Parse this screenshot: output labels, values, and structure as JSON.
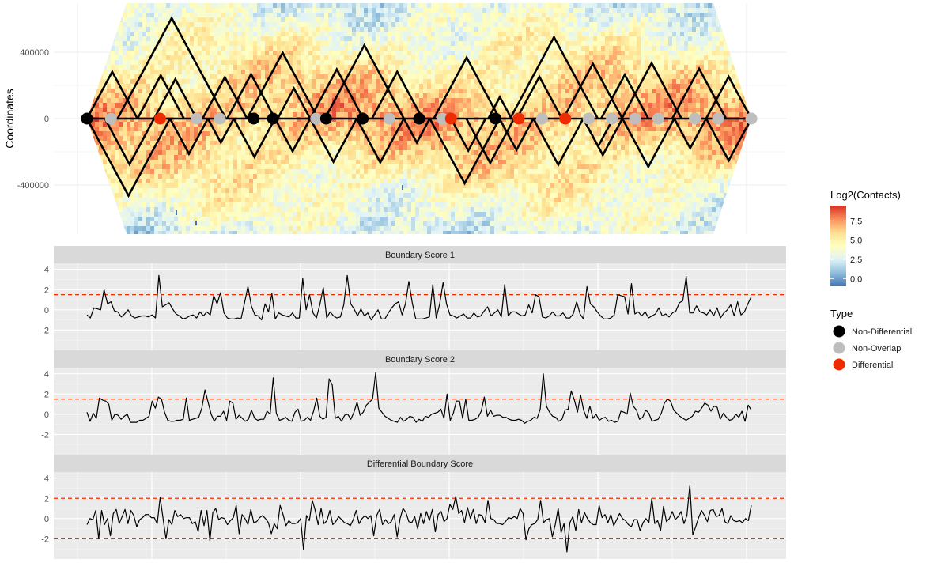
{
  "chart_data": [
    {
      "type": "heatmap",
      "ylabel": "Coordinates",
      "y_ticks": [
        400000,
        0,
        -400000
      ],
      "y_tick_labels": [
        "400000",
        "0",
        "-400000"
      ],
      "ylim": [
        -680000,
        690000
      ],
      "colorbar": {
        "title": "Log2(Contacts)",
        "range": [
          -1,
          9.5
        ],
        "ticks": [
          7.5,
          5.0,
          2.5,
          0.0
        ],
        "tick_labels": [
          "7.5",
          "5.0",
          "2.5",
          "0.0"
        ],
        "colors": [
          "#4575b4",
          "#91bfdb",
          "#e0f3f8",
          "#ffffbf",
          "#fee090",
          "#fc8d59",
          "#d73027"
        ]
      },
      "tad_domains_upper": [
        [
          0,
          0.076
        ],
        [
          0.046,
          0.209
        ],
        [
          0.101,
          0.165
        ],
        [
          0.241,
          0.348
        ],
        [
          0.211,
          0.283
        ],
        [
          0.287,
          0.336
        ],
        [
          0.358,
          0.477
        ],
        [
          0.336,
          0.416
        ],
        [
          0.429,
          0.505
        ],
        [
          0.522,
          0.621
        ],
        [
          0.604,
          0.639
        ],
        [
          0.637,
          0.769
        ],
        [
          0.647,
          0.715
        ],
        [
          0.717,
          0.806
        ],
        [
          0.805,
          0.895
        ],
        [
          0.774,
          0.845
        ],
        [
          0.881,
          0.962
        ],
        [
          0.932,
          1.0
        ],
        [
          0.076,
          0.146
        ],
        [
          0.174,
          0.241
        ]
      ],
      "tad_domains_lower": [
        [
          0,
          0.125
        ],
        [
          0.027,
          0.101
        ],
        [
          0.125,
          0.182
        ],
        [
          0.182,
          0.221
        ],
        [
          0.221,
          0.283
        ],
        [
          0.283,
          0.336
        ],
        [
          0.336,
          0.406
        ],
        [
          0.406,
          0.477
        ],
        [
          0.477,
          0.516
        ],
        [
          0.516,
          0.621
        ],
        [
          0.621,
          0.672
        ],
        [
          0.672,
          0.747
        ],
        [
          0.747,
          0.806
        ],
        [
          0.806,
          0.884
        ],
        [
          0.884,
          0.932
        ],
        [
          0.932,
          1.0
        ],
        [
          0.571,
          0.643
        ],
        [
          0.747,
          0.792
        ],
        [
          0.548,
          0.6
        ]
      ],
      "legend": {
        "title": "Type",
        "entries": [
          {
            "label": "Non-Differential",
            "color": "#000000"
          },
          {
            "label": "Non-Overlap",
            "color": "#bebebe"
          },
          {
            "label": "Differential",
            "color": "#ee2c00"
          }
        ]
      },
      "boundaries": [
        {
          "x": 0.0,
          "type": "Non-Differential"
        },
        {
          "x": 0.036,
          "type": "Non-Overlap"
        },
        {
          "x": 0.11,
          "type": "Differential"
        },
        {
          "x": 0.165,
          "type": "Non-Overlap"
        },
        {
          "x": 0.2,
          "type": "Non-Overlap"
        },
        {
          "x": 0.251,
          "type": "Non-Differential"
        },
        {
          "x": 0.28,
          "type": "Non-Differential"
        },
        {
          "x": 0.345,
          "type": "Non-Overlap"
        },
        {
          "x": 0.36,
          "type": "Non-Differential"
        },
        {
          "x": 0.415,
          "type": "Non-Differential"
        },
        {
          "x": 0.455,
          "type": "Non-Overlap"
        },
        {
          "x": 0.5,
          "type": "Non-Differential"
        },
        {
          "x": 0.535,
          "type": "Non-Overlap"
        },
        {
          "x": 0.548,
          "type": "Differential"
        },
        {
          "x": 0.615,
          "type": "Non-Differential"
        },
        {
          "x": 0.65,
          "type": "Differential"
        },
        {
          "x": 0.685,
          "type": "Non-Overlap"
        },
        {
          "x": 0.72,
          "type": "Differential"
        },
        {
          "x": 0.755,
          "type": "Non-Overlap"
        },
        {
          "x": 0.79,
          "type": "Non-Overlap"
        },
        {
          "x": 0.825,
          "type": "Non-Overlap"
        },
        {
          "x": 0.86,
          "type": "Non-Overlap"
        },
        {
          "x": 0.915,
          "type": "Non-Overlap"
        },
        {
          "x": 0.95,
          "type": "Non-Overlap"
        },
        {
          "x": 1.0,
          "type": "Non-Overlap"
        }
      ]
    },
    {
      "type": "line",
      "title": "Boundary Score 1",
      "ylim": [
        -4,
        4.6
      ],
      "y_ticks": [
        4,
        2,
        0,
        -2
      ],
      "y_tick_labels": [
        "4",
        "2",
        "0",
        "-2"
      ],
      "threshold": [
        1.5
      ],
      "x_range": [
        0,
        1
      ],
      "values": [
        -0.5,
        -0.8,
        0.2,
        0.1,
        0.0,
        2.0,
        0.6,
        0.8,
        -0.1,
        -0.2,
        -0.7,
        -0.4,
        0.0,
        -0.6,
        -0.8,
        -0.7,
        -0.6,
        -0.6,
        -0.7,
        -0.5,
        -0.8,
        3.4,
        0.3,
        0.5,
        0.7,
        0.1,
        -0.4,
        -0.6,
        -0.9,
        -0.8,
        -0.6,
        -0.5,
        -0.8,
        -0.2,
        -0.6,
        -0.2,
        -0.5,
        1.4,
        0.6,
        1.7,
        -0.3,
        -0.8,
        -0.9,
        -0.9,
        -0.8,
        -0.9,
        0.7,
        2.3,
        0.4,
        -0.5,
        -0.6,
        -1.0,
        0.6,
        -0.2,
        1.6,
        -0.9,
        -0.3,
        -0.5,
        -0.6,
        -0.7,
        -0.3,
        -0.8,
        -0.8,
        3.1,
        0.0,
        1.5,
        -0.3,
        -0.8,
        0.5,
        2.2,
        -0.8,
        -0.2,
        -0.6,
        -0.8,
        -0.7,
        0.5,
        3.4,
        0.6,
        0.1,
        -0.6,
        0.1,
        -0.6,
        -0.3,
        -1.0,
        -0.5,
        0.0,
        -0.9,
        -0.9,
        -0.3,
        0.2,
        0.6,
        0.8,
        -0.5,
        0.6,
        2.8,
        0.7,
        -0.9,
        -0.9,
        -0.9,
        -0.8,
        -0.7,
        2.5,
        -0.8,
        0.6,
        2.7,
        0.6,
        -0.5,
        -0.6,
        -0.8,
        -0.6,
        -0.4,
        -0.8,
        -0.8,
        -0.3,
        -0.7,
        -0.6,
        -0.1,
        0.3,
        -0.6,
        -0.3,
        0.0,
        -0.7,
        2.5,
        -0.6,
        -0.2,
        -0.2,
        -0.4,
        -0.6,
        -0.5,
        0.5,
        -0.3,
        1.5,
        1.3,
        -0.7,
        -0.8,
        -0.6,
        -0.2,
        -0.6,
        -0.6,
        -0.3,
        -0.8,
        -0.8,
        -0.4,
        0.8,
        -0.4,
        -0.9,
        2.3,
        0.6,
        0.3,
        -0.2,
        -0.6,
        -0.9,
        -0.9,
        -0.8,
        -0.5,
        1.5,
        1.4,
        1.3,
        -0.4,
        2.6,
        -0.4,
        -0.2,
        -0.6,
        -0.2,
        -0.8,
        -0.6,
        -0.4,
        0.2,
        -0.6,
        -0.4,
        -0.7,
        -0.3,
        -0.1,
        0.7,
        0.9,
        3.3,
        -0.3,
        -0.3,
        0.4,
        -0.2,
        -0.3,
        -0.5,
        0.0,
        -0.6,
        0.2,
        -0.8,
        -0.3,
        0.0,
        0.5,
        -0.6,
        0.8,
        -0.5,
        -0.2,
        0.6,
        1.3
      ]
    },
    {
      "type": "line",
      "title": "Boundary Score 2",
      "ylim": [
        -4,
        4.6
      ],
      "y_ticks": [
        4,
        2,
        0,
        -2
      ],
      "y_tick_labels": [
        "4",
        "2",
        "0",
        "-2"
      ],
      "threshold": [
        1.5
      ],
      "x_range": [
        0,
        1
      ],
      "values": [
        0.2,
        -0.7,
        0.1,
        -0.4,
        1.6,
        1.4,
        1.3,
        1.0,
        -0.6,
        0.0,
        -0.1,
        -0.5,
        -0.2,
        0.0,
        -0.8,
        -0.8,
        -0.8,
        -0.6,
        -0.6,
        -0.4,
        -0.2,
        1.3,
        0.6,
        1.7,
        1.5,
        0.2,
        -0.6,
        -0.7,
        -0.7,
        -0.6,
        -0.6,
        -0.5,
        1.6,
        -0.6,
        -0.5,
        -0.4,
        -0.3,
        0.6,
        2.4,
        1.2,
        0.0,
        -0.7,
        -0.2,
        -0.2,
        0.3,
        -0.6,
        1.3,
        1.1,
        -0.5,
        -0.1,
        -0.4,
        -0.7,
        -0.5,
        0.4,
        -0.4,
        -0.6,
        -0.5,
        -0.5,
        0.3,
        0.0,
        3.6,
        0.1,
        -0.6,
        -0.5,
        -0.3,
        -0.6,
        -0.7,
        0.2,
        0.5,
        -0.7,
        -0.6,
        -0.3,
        -0.6,
        0.3,
        1.6,
        -0.2,
        -0.5,
        -0.3,
        3.5,
        2.9,
        -0.4,
        -0.2,
        -0.7,
        -0.1,
        0.0,
        -0.5,
        0.2,
        1.2,
        -0.1,
        0.2,
        0.9,
        1.2,
        1.5,
        4.1,
        0.6,
        0.2,
        -0.2,
        -0.4,
        -0.6,
        -0.7,
        -0.8,
        -0.3,
        -0.7,
        -0.5,
        -0.2,
        -0.3,
        -0.8,
        -0.5,
        -0.7,
        -0.2,
        -0.3,
        0.0,
        0.1,
        0.2,
        0.5,
        -0.4,
        2.0,
        -0.6,
        0.1,
        1.3,
        1.3,
        -0.4,
        1.5,
        -0.6,
        -0.6,
        -0.5,
        -0.3,
        0.3,
        1.7,
        -0.2,
        0.4,
        -0.2,
        -0.1,
        -0.1,
        -0.3,
        -0.3,
        -0.5,
        -0.6,
        -0.6,
        -0.5,
        -0.6,
        -0.9,
        -0.7,
        -0.6,
        -0.3,
        -0.4,
        0.5,
        4.0,
        0.8,
        0.2,
        -0.2,
        -0.3,
        -0.7,
        -0.5,
        0.4,
        0.5,
        2.3,
        1.4,
        0.2,
        1.9,
        0.4,
        -0.4,
        0.8,
        -0.4,
        0.0,
        -0.6,
        -0.4,
        -0.3,
        -0.7,
        -0.6,
        -0.8,
        -0.7,
        0.3,
        0.2,
        0.0,
        2.1,
        0.8,
        0.4,
        -0.5,
        -0.3,
        0.4,
        0.1,
        -0.7,
        -0.6,
        -0.5,
        0.1,
        1.1,
        1.5,
        1.3,
        0.4,
        0.1,
        -0.2,
        -0.4,
        -0.6,
        -0.4,
        -0.2,
        0.3,
        0.2,
        0.6,
        1.1,
        0.9,
        0.3,
        0.8,
        0.7,
        -0.5,
        0.1,
        -0.3,
        -0.6,
        -0.5,
        0.0,
        -0.3,
        0.3,
        -0.7,
        0.9,
        0.4
      ]
    },
    {
      "type": "line",
      "title": "Differential Boundary Score",
      "ylim": [
        -4,
        4.6
      ],
      "y_ticks": [
        4,
        2,
        0,
        -2
      ],
      "y_tick_labels": [
        "4",
        "2",
        "0",
        "-2"
      ],
      "threshold": [
        2,
        -2
      ],
      "x_range": [
        0,
        1
      ],
      "values": [
        -0.6,
        0.0,
        -0.1,
        0.8,
        -2.0,
        0.8,
        -0.6,
        0.0,
        -1.7,
        0.5,
        0.9,
        -0.5,
        0.2,
        0.9,
        -0.5,
        0.8,
        0.3,
        -0.8,
        -0.1,
        0.1,
        0.4,
        0.4,
        0.1,
        0.1,
        -0.5,
        2.1,
        0.0,
        -2.0,
        -0.1,
        -0.6,
        0.8,
        0.2,
        0.4,
        0.0,
        0.1,
        0.1,
        -0.5,
        -0.3,
        -1.3,
        0.8,
        -0.7,
        0.8,
        -2.2,
        0.6,
        1.0,
        -0.1,
        0.1,
        0.0,
        -0.6,
        -0.2,
        0.1,
        1.3,
        -1.5,
        0.4,
        0.0,
        -0.6,
        0.9,
        -0.4,
        -0.3,
        0.1,
        0.3,
        0.0,
        -0.4,
        -1.5,
        -0.5,
        -1.0,
        1.3,
        0.4,
        -0.7,
        -0.2,
        -0.5,
        -0.5,
        -0.4,
        0.0,
        -3.1,
        0.3,
        -0.2,
        1.8,
        0.8,
        -0.6,
        1.0,
        -0.5,
        -0.2,
        0.8,
        -0.6,
        -0.3,
        0.2,
        -0.1,
        -0.4,
        -0.5,
        -0.7,
        -0.1,
        0.8,
        -0.5,
        0.0,
        0.3,
        0.0,
        0.3,
        -1.7,
        0.3,
        0.9,
        -0.6,
        -0.1,
        -0.5,
        -0.3,
        0.4,
        -1.8,
        0.0,
        1.0,
        0.6,
        -0.3,
        -0.4,
        0.2,
        -1.0,
        0.5,
        -0.5,
        0.7,
        -0.2,
        0.9,
        -1.3,
        0.4,
        0.7,
        -0.3,
        0.0,
        1.4,
        0.9,
        2.2,
        0.5,
        0.8,
        -0.4,
        1.1,
        0.0,
        0.9,
        -0.5,
        0.4,
        0.3,
        -0.4,
        1.8,
        0.0,
        -0.1,
        -0.5,
        -0.5,
        -0.6,
        -0.3,
        0.1,
        0.0,
        0.2,
        0.0,
        1.0,
        0.5,
        -2.1,
        -1.0,
        -0.6,
        -0.5,
        -0.1,
        1.8,
        -0.4,
        -0.1,
        0.0,
        -1.8,
        -0.6,
        1.0,
        -1.4,
        -0.5,
        -3.3,
        -0.4,
        0.2,
        -1.2,
        0.9,
        -0.4,
        0.6,
        0.0,
        -0.4,
        -0.6,
        -0.6,
        1.3,
        0.1,
        0.4,
        -0.4,
        0.4,
        -0.7,
        -0.1,
        0.5,
        0.0,
        -0.2,
        -0.6,
        -0.8,
        -0.1,
        -0.1,
        -1.2,
        -0.4,
        0.0,
        -0.4,
        2.0,
        -0.5,
        -0.2,
        -1.2,
        1.2,
        -0.3,
        0.0,
        0.7,
        -0.1,
        0.2,
        0.7,
        -0.5,
        0.3,
        3.3,
        -1.6,
        -0.8,
        0.1,
        0.8,
        0.3,
        -0.3,
        0.8,
        0.9,
        0.2,
        0.3,
        1.0,
        -0.3,
        -0.5,
        0.3,
        -0.2,
        -0.3,
        -0.2,
        -0.4,
        0.0,
        -0.2,
        1.3
      ]
    }
  ]
}
